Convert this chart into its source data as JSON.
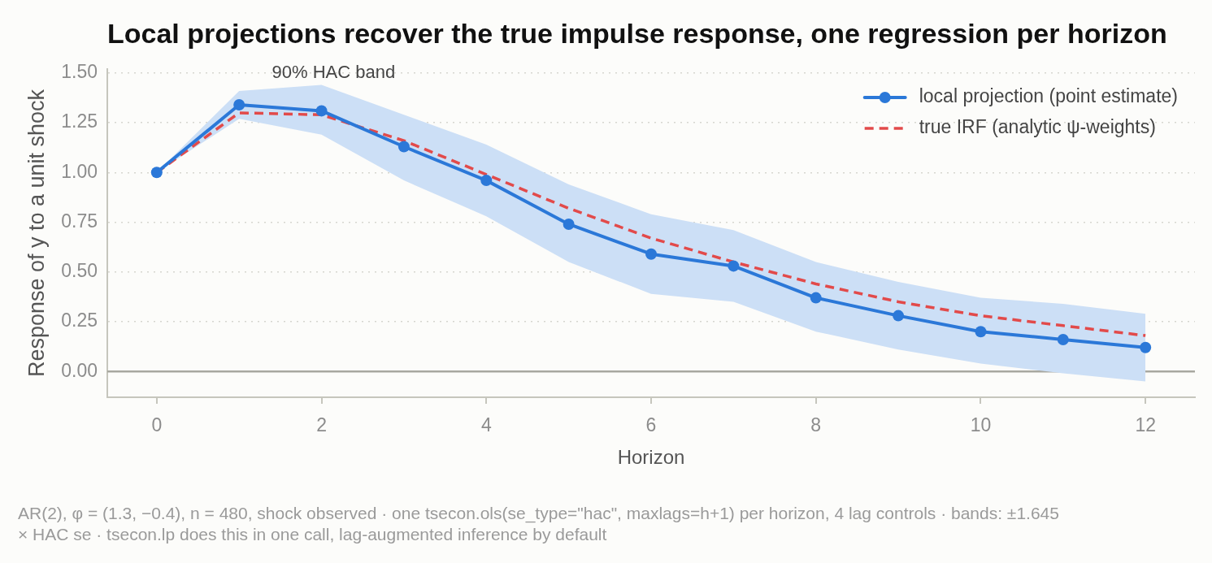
{
  "chart_data": {
    "type": "line",
    "title": "Local projections recover the true impulse response, one regression per horizon",
    "xlabel": "Horizon",
    "ylabel": "Response of y to a unit shock",
    "x": [
      0,
      1,
      2,
      3,
      4,
      5,
      6,
      7,
      8,
      9,
      10,
      11,
      12
    ],
    "series": [
      {
        "name": "local projection (point estimate)",
        "color": "#2b78d8",
        "marker": "circle",
        "line_style": "solid",
        "values": [
          1,
          1.34,
          1.31,
          1.13,
          0.96,
          0.74,
          0.59,
          0.53,
          0.37,
          0.28,
          0.2,
          0.16,
          0.12
        ],
        "lower": [
          1,
          1.27,
          1.19,
          0.96,
          0.78,
          0.55,
          0.39,
          0.35,
          0.2,
          0.11,
          0.04,
          -0.01,
          -0.05
        ],
        "upper": [
          1,
          1.41,
          1.44,
          1.29,
          1.14,
          0.94,
          0.79,
          0.71,
          0.55,
          0.45,
          0.37,
          0.34,
          0.29
        ]
      },
      {
        "name": "true IRF (analytic ψ-weights)",
        "color": "#e24a4a",
        "marker": "none",
        "line_style": "dashed",
        "values": [
          1,
          1.3,
          1.29,
          1.16,
          0.99,
          0.82,
          0.67,
          0.55,
          0.44,
          0.35,
          0.28,
          0.23,
          0.18
        ]
      }
    ],
    "xlim": [
      -0.6,
      12.6
    ],
    "xticks": [
      0,
      2,
      4,
      6,
      8,
      10,
      12
    ],
    "ylim": [
      -0.13,
      1.52
    ],
    "yticks": [
      {
        "value": 0,
        "label": "0.00"
      },
      {
        "value": 0.25,
        "label": "0.25"
      },
      {
        "value": 0.5,
        "label": "0.50"
      },
      {
        "value": 0.75,
        "label": "0.75"
      },
      {
        "value": 1,
        "label": "1.00"
      },
      {
        "value": 1.25,
        "label": "1.25"
      },
      {
        "value": 1.5,
        "label": "1.50"
      }
    ],
    "grid": "y",
    "legend": "top right",
    "ref_lines": [
      {
        "axis": "y",
        "value": 0,
        "color": "#a8a8a0"
      }
    ],
    "annotations": [
      "90% HAC band",
      "AR(2), φ = (1.3, −0.4), n = 480, shock observed · one tsecon.ols(se_type=\"hac\", maxlags=h+1) per horizon, 4 lag controls · bands: ±1.645 × HAC se · tsecon.lp does this in one call, lag-augmented inference by default"
    ]
  }
}
